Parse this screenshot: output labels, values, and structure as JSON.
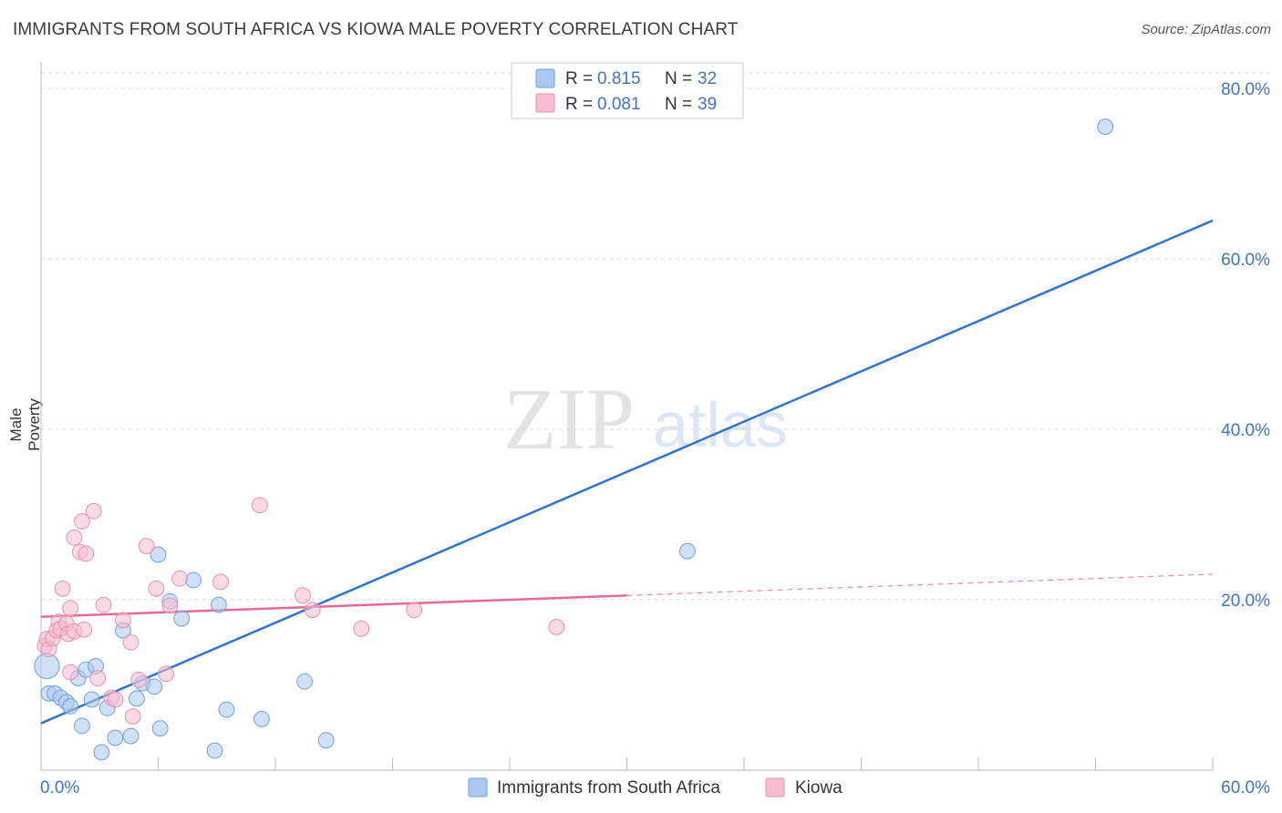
{
  "title": "IMMIGRANTS FROM SOUTH AFRICA VS KIOWA MALE POVERTY CORRELATION CHART",
  "source": "Source: ZipAtlas.com",
  "watermark": {
    "zip": "ZIP",
    "atlas": "atlas"
  },
  "colors": {
    "blue_fill": "#aac8f0",
    "blue_stroke": "#6f9fdc",
    "blue_line": "#2e74d0",
    "pink_fill": "#f6bcd0",
    "pink_stroke": "#e890b0",
    "pink_line": "#e36a98",
    "axis_text": "#3f74c8",
    "grid": "#d8d8d8"
  },
  "legend": {
    "rows": [
      {
        "r_label": "R = ",
        "r_value": "0.815",
        "n_label": "N = ",
        "n_value": "32"
      },
      {
        "r_label": "R = ",
        "r_value": "0.081",
        "n_label": "N = ",
        "n_value": "39"
      }
    ]
  },
  "chart_data": {
    "type": "scatter",
    "title": "IMMIGRANTS FROM SOUTH AFRICA VS KIOWA MALE POVERTY CORRELATION CHART",
    "xlabel": "",
    "ylabel": "Male Poverty",
    "xlim": [
      0,
      60
    ],
    "ylim": [
      0,
      80
    ],
    "x_tick_labels": [
      "0.0%",
      "60.0%"
    ],
    "y_ticks": [
      20,
      40,
      60,
      80
    ],
    "y_tick_labels": [
      "20.0%",
      "40.0%",
      "60.0%",
      "80.0%"
    ],
    "x_grid_ticks": [
      0,
      6,
      12,
      18,
      24,
      30,
      36,
      42,
      48,
      54,
      60
    ],
    "series": [
      {
        "name": "Immigrants from South Africa",
        "color": "blue",
        "r": 0.815,
        "n": 32,
        "trend": {
          "x": [
            0,
            60
          ],
          "y": [
            5.5,
            64.5
          ],
          "dashed_from": null
        },
        "points": [
          [
            0.3,
            12.2,
            13
          ],
          [
            0.4,
            9.0,
            8
          ],
          [
            0.7,
            9.0,
            8
          ],
          [
            1.0,
            8.5,
            8
          ],
          [
            1.3,
            8.0,
            8
          ],
          [
            1.5,
            7.5,
            8
          ],
          [
            1.9,
            10.8,
            8
          ],
          [
            2.1,
            5.2,
            8
          ],
          [
            2.3,
            11.8,
            8
          ],
          [
            2.6,
            8.3,
            8
          ],
          [
            2.8,
            12.2,
            8
          ],
          [
            3.1,
            2.1,
            8
          ],
          [
            3.4,
            7.3,
            8
          ],
          [
            3.8,
            3.8,
            8
          ],
          [
            4.2,
            16.4,
            8
          ],
          [
            4.6,
            4.0,
            8
          ],
          [
            4.9,
            8.4,
            8
          ],
          [
            5.2,
            10.2,
            8
          ],
          [
            5.8,
            9.8,
            8
          ],
          [
            6.0,
            25.3,
            8
          ],
          [
            6.1,
            4.9,
            8
          ],
          [
            6.6,
            19.8,
            8
          ],
          [
            7.2,
            17.8,
            8
          ],
          [
            7.8,
            22.3,
            8
          ],
          [
            8.9,
            2.3,
            8
          ],
          [
            9.1,
            19.4,
            8
          ],
          [
            9.5,
            7.1,
            8
          ],
          [
            11.3,
            6.0,
            8
          ],
          [
            13.5,
            10.4,
            8
          ],
          [
            14.6,
            3.5,
            8
          ],
          [
            33.1,
            25.7,
            8
          ],
          [
            54.5,
            75.5,
            8
          ]
        ]
      },
      {
        "name": "Kiowa",
        "color": "pink",
        "r": 0.081,
        "n": 39,
        "trend": {
          "x": [
            0,
            60
          ],
          "y": [
            18.0,
            23.0
          ],
          "dashed_from": 30
        },
        "points": [
          [
            0.2,
            14.6,
            8
          ],
          [
            0.3,
            15.4,
            8
          ],
          [
            0.4,
            14.2,
            8
          ],
          [
            0.6,
            15.5,
            8
          ],
          [
            0.8,
            16.4,
            8
          ],
          [
            0.9,
            17.4,
            8
          ],
          [
            1.0,
            16.6,
            8
          ],
          [
            1.1,
            21.3,
            8
          ],
          [
            1.3,
            17.2,
            8
          ],
          [
            1.4,
            16.0,
            8
          ],
          [
            1.5,
            19.0,
            8
          ],
          [
            1.5,
            11.5,
            8
          ],
          [
            1.7,
            27.3,
            8
          ],
          [
            1.7,
            16.3,
            8
          ],
          [
            2.0,
            25.6,
            8
          ],
          [
            2.1,
            29.2,
            8
          ],
          [
            2.2,
            16.5,
            8
          ],
          [
            2.3,
            25.4,
            8
          ],
          [
            2.7,
            30.4,
            8
          ],
          [
            2.9,
            10.8,
            8
          ],
          [
            3.2,
            19.4,
            8
          ],
          [
            3.6,
            8.5,
            8
          ],
          [
            3.8,
            8.3,
            8
          ],
          [
            4.2,
            17.6,
            8
          ],
          [
            4.6,
            15.0,
            8
          ],
          [
            4.7,
            6.3,
            8
          ],
          [
            5.0,
            10.6,
            8
          ],
          [
            5.4,
            26.3,
            8
          ],
          [
            5.9,
            21.3,
            8
          ],
          [
            6.4,
            11.3,
            8
          ],
          [
            6.6,
            19.3,
            8
          ],
          [
            7.1,
            22.5,
            8
          ],
          [
            9.2,
            22.1,
            8
          ],
          [
            11.2,
            31.1,
            8
          ],
          [
            13.4,
            20.5,
            8
          ],
          [
            13.9,
            18.8,
            8
          ],
          [
            16.4,
            16.6,
            8
          ],
          [
            19.1,
            18.8,
            8
          ],
          [
            26.4,
            16.8,
            8
          ]
        ]
      }
    ],
    "legend_position": "top-center"
  },
  "bottom_legend": [
    {
      "label": "Immigrants from South Africa",
      "color": "blue"
    },
    {
      "label": "Kiowa",
      "color": "pink"
    }
  ]
}
